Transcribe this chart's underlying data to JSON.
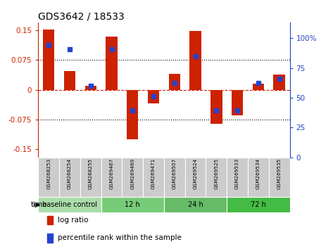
{
  "title": "GDS3642 / 18533",
  "samples": [
    "GSM268253",
    "GSM268254",
    "GSM268255",
    "GSM269467",
    "GSM269469",
    "GSM269471",
    "GSM269507",
    "GSM269524",
    "GSM269525",
    "GSM269533",
    "GSM269534",
    "GSM269535"
  ],
  "log_ratio": [
    0.152,
    0.048,
    0.01,
    0.135,
    -0.125,
    -0.035,
    0.04,
    0.149,
    -0.085,
    -0.065,
    0.015,
    0.038
  ],
  "percentile_rank": [
    83,
    80,
    53,
    80,
    35,
    45,
    55,
    75,
    35,
    35,
    55,
    58
  ],
  "groups": [
    {
      "label": "baseline control",
      "start": 0,
      "end": 3,
      "color": "#aaddaa"
    },
    {
      "label": "12 h",
      "start": 3,
      "end": 6,
      "color": "#77cc77"
    },
    {
      "label": "24 h",
      "start": 6,
      "end": 9,
      "color": "#66bb66"
    },
    {
      "label": "72 h",
      "start": 9,
      "end": 12,
      "color": "#44bb44"
    }
  ],
  "bar_color": "#cc2200",
  "dot_color": "#2244cc",
  "ylim_left": [
    -0.17,
    0.17
  ],
  "ylim_right": [
    0,
    113.33
  ],
  "yticks_left": [
    -0.15,
    -0.075,
    0,
    0.075,
    0.15
  ],
  "yticks_right_vals": [
    0,
    25,
    50,
    75,
    100
  ],
  "yticks_right_labels": [
    "0",
    "25",
    "50",
    "75",
    "100%"
  ],
  "bg_color": "#ffffff",
  "label_bg": "#cccccc",
  "bar_width": 0.55,
  "dot_size": 5
}
